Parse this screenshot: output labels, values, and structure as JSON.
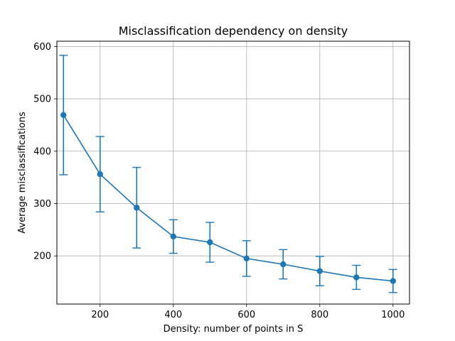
{
  "chart_data": {
    "type": "line",
    "title": "Misclassification dependency on density",
    "xlabel": "Density: number of points in S",
    "ylabel": "Average misclassifications",
    "xlim": [
      82,
      1045
    ],
    "ylim": [
      108,
      610
    ],
    "x_ticks": [
      200,
      400,
      600,
      800,
      1000
    ],
    "y_ticks": [
      200,
      300,
      400,
      500,
      600
    ],
    "grid": true,
    "error_bars": true,
    "series": [
      {
        "color": "#1f77b4",
        "marker": "circle",
        "x": [
          100,
          200,
          300,
          400,
          500,
          600,
          700,
          800,
          900,
          1000
        ],
        "y": [
          469,
          356,
          292,
          237,
          226,
          195,
          184,
          171,
          159,
          152
        ],
        "error": [
          114,
          72,
          77,
          32,
          38,
          34,
          28,
          28,
          23,
          22
        ]
      }
    ]
  }
}
